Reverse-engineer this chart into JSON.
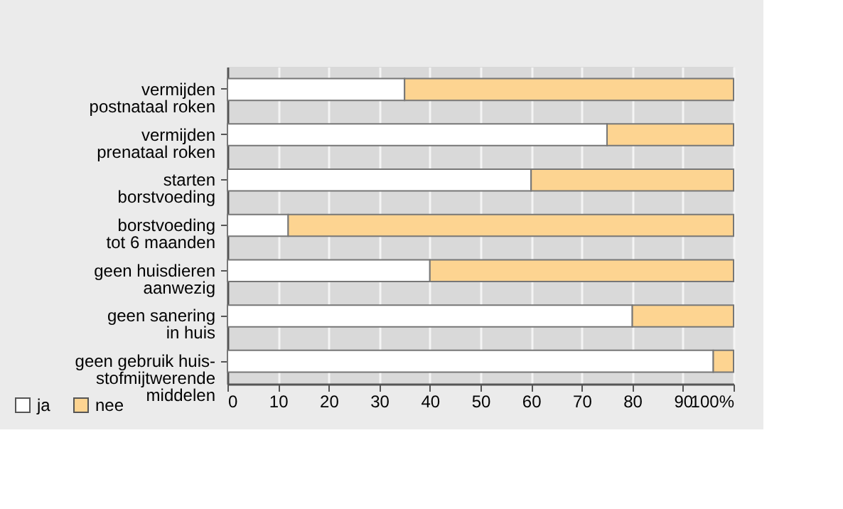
{
  "chart_data": {
    "type": "bar",
    "orientation": "horizontal",
    "stacked": true,
    "categories": [
      "vermijden\npostnataal roken",
      "vermijden\nprenataal roken",
      "starten\nborstvoeding",
      "borstvoeding\ntot 6 maanden",
      "geen huisdieren\naanwezig",
      "geen sanering\nin huis",
      "geen gebruik huis-\nstofmijtwerende\nmiddelen"
    ],
    "series": [
      {
        "name": "ja",
        "color": "#ffffff",
        "values": [
          35,
          75,
          60,
          12,
          40,
          80,
          96
        ]
      },
      {
        "name": "nee",
        "color": "#fdd491",
        "values": [
          65,
          25,
          40,
          88,
          60,
          20,
          4
        ]
      }
    ],
    "xlim": [
      0,
      100
    ],
    "xticks": [
      0,
      10,
      20,
      30,
      40,
      50,
      60,
      70,
      80,
      90,
      {
        "value": 100,
        "label": "100%"
      }
    ],
    "grid": "x",
    "legend": "bottom left"
  }
}
